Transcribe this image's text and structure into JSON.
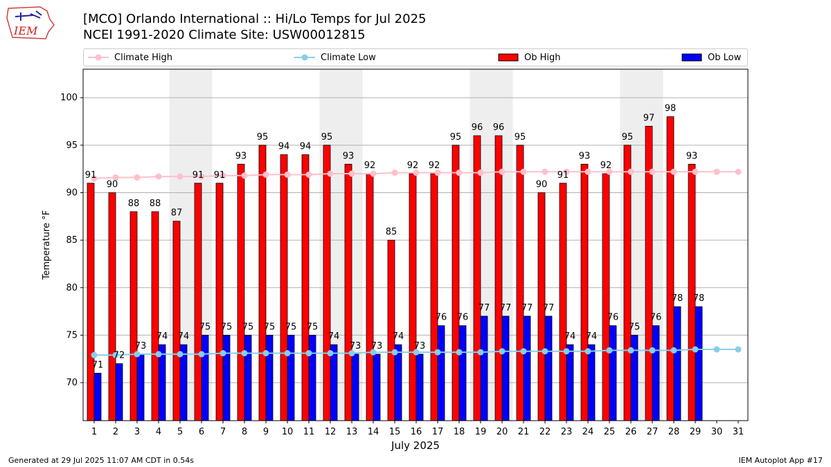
{
  "header": {
    "title_line1": "[MCO] Orlando International :: Hi/Lo Temps for Jul 2025",
    "title_line2": "NCEI 1991-2020 Climate Site: USW00012815",
    "logo_text": "IEM"
  },
  "footer": {
    "left": "Generated at 29 Jul 2025 11:07 AM CDT in 0.54s",
    "right": "IEM Autoplot App #17"
  },
  "legend": {
    "climate_high": "Climate High",
    "climate_low": "Climate Low",
    "ob_high": "Ob High",
    "ob_low": "Ob Low"
  },
  "colors": {
    "ob_high": "#ff0000",
    "ob_low": "#0000ff",
    "climate_high": "#ffc0cb",
    "climate_low": "#87ceeb",
    "weekend_shade": "#eeeeee"
  },
  "chart_data": {
    "type": "bar",
    "xlabel": "July 2025",
    "ylabel": "Temperature °F",
    "ylim": [
      66,
      103
    ],
    "yticks": [
      70,
      75,
      80,
      85,
      90,
      95,
      100
    ],
    "grid": true,
    "legend_position": "top",
    "categories": [
      "1",
      "2",
      "3",
      "4",
      "5",
      "6",
      "7",
      "8",
      "9",
      "10",
      "11",
      "12",
      "13",
      "14",
      "15",
      "16",
      "17",
      "18",
      "19",
      "20",
      "21",
      "22",
      "23",
      "24",
      "25",
      "26",
      "27",
      "28",
      "29",
      "30",
      "31"
    ],
    "weekend_shaded_days": [
      [
        5,
        6
      ],
      [
        12,
        13
      ],
      [
        19,
        20
      ],
      [
        26,
        27
      ]
    ],
    "series": [
      {
        "name": "Ob High",
        "kind": "bar",
        "values": [
          91,
          90,
          88,
          88,
          87,
          91,
          91,
          93,
          95,
          94,
          94,
          95,
          93,
          92,
          85,
          92,
          92,
          95,
          96,
          96,
          95,
          90,
          91,
          93,
          92,
          95,
          97,
          98,
          93,
          null,
          null
        ]
      },
      {
        "name": "Ob Low",
        "kind": "bar",
        "values": [
          71,
          72,
          73,
          74,
          74,
          75,
          75,
          75,
          75,
          75,
          75,
          74,
          73,
          73,
          74,
          73,
          76,
          76,
          77,
          77,
          77,
          77,
          74,
          74,
          76,
          75,
          76,
          78,
          78,
          null,
          null
        ]
      },
      {
        "name": "Climate High",
        "kind": "line",
        "values": [
          91.5,
          91.6,
          91.6,
          91.7,
          91.7,
          91.7,
          91.8,
          91.8,
          91.9,
          91.9,
          91.9,
          92.0,
          92.0,
          92.0,
          92.1,
          92.1,
          92.1,
          92.1,
          92.1,
          92.2,
          92.2,
          92.2,
          92.2,
          92.2,
          92.2,
          92.2,
          92.2,
          92.2,
          92.2,
          92.2,
          92.2
        ]
      },
      {
        "name": "Climate Low",
        "kind": "line",
        "values": [
          72.9,
          72.9,
          73.0,
          73.0,
          73.0,
          73.0,
          73.1,
          73.1,
          73.1,
          73.1,
          73.1,
          73.1,
          73.1,
          73.2,
          73.2,
          73.2,
          73.2,
          73.2,
          73.2,
          73.3,
          73.3,
          73.3,
          73.3,
          73.3,
          73.4,
          73.4,
          73.4,
          73.4,
          73.5,
          73.5,
          73.5
        ]
      }
    ]
  }
}
